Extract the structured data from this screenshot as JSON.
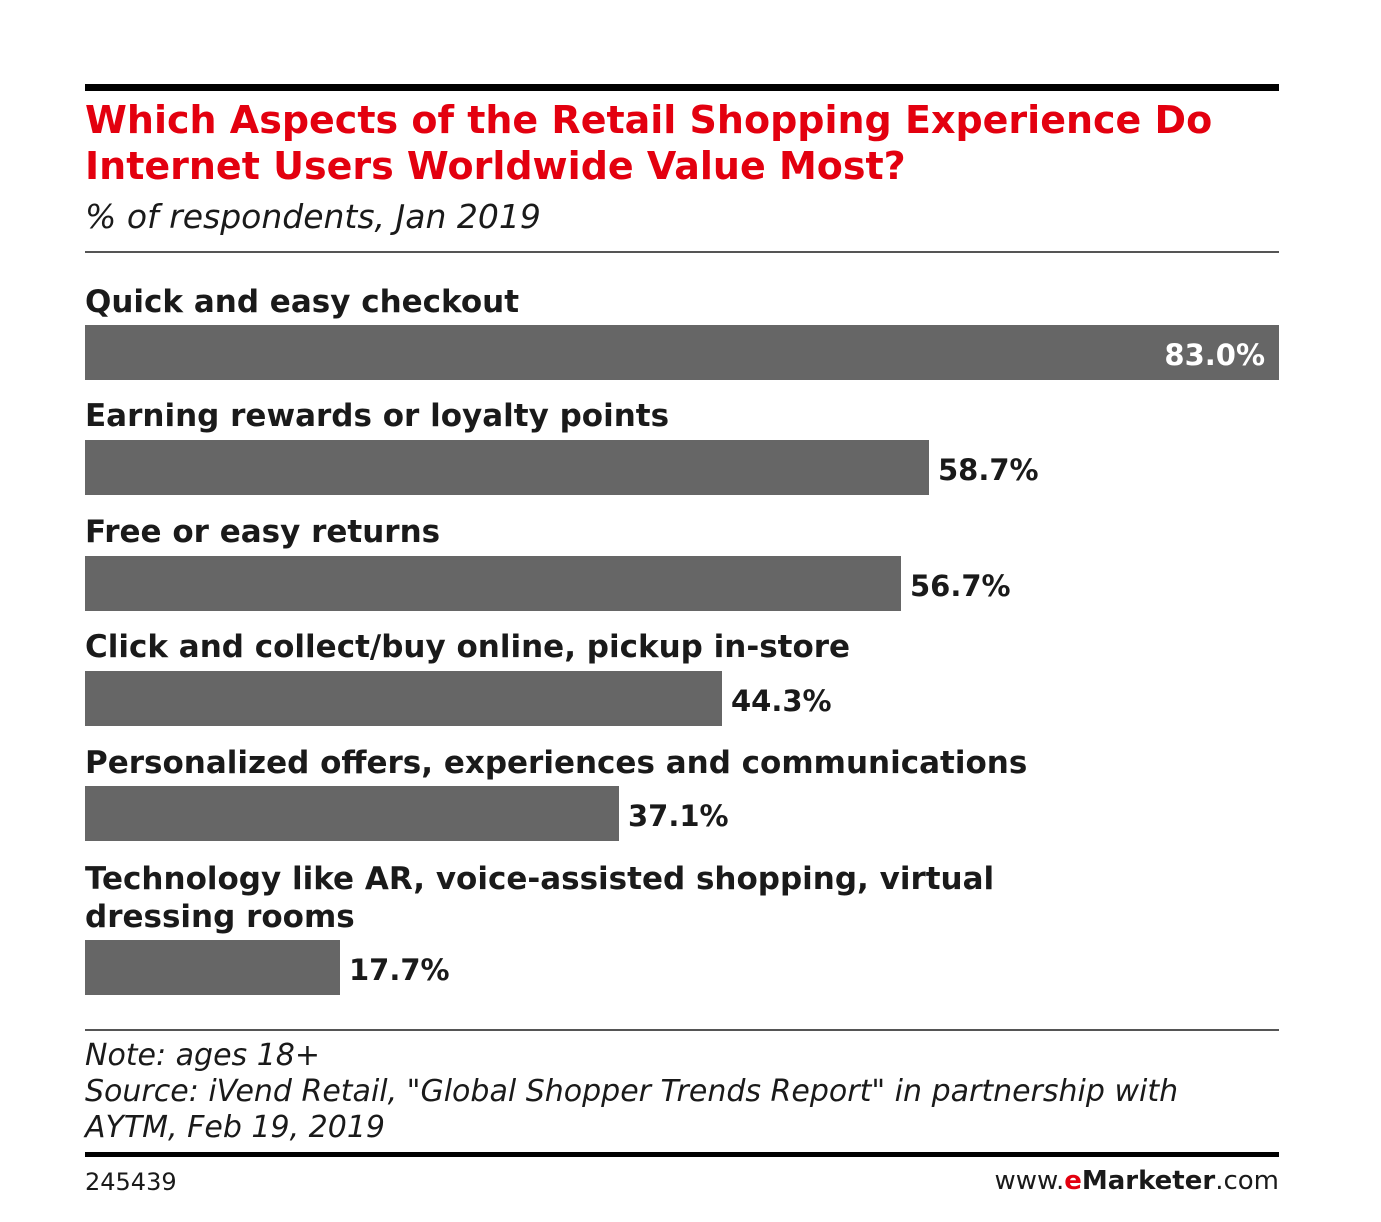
{
  "header": {
    "title": "Which Aspects of the Retail Shopping Experience Do Internet Users Worldwide Value Most?",
    "subtitle": "% of respondents, Jan 2019"
  },
  "footer": {
    "note": "Note: ages 18+",
    "source": "Source: iVend Retail, \"Global Shopper Trends Report\" in partnership with AYTM, Feb 19, 2019",
    "chart_id": "245439",
    "brand_prefix": "www.",
    "brand_e": "e",
    "brand_name": "Marketer",
    "brand_suffix": ".com"
  },
  "colors": {
    "title": "#e3000f",
    "bar": "#666666",
    "value_inside": "#ffffff",
    "value_outside": "#1a1a1a"
  },
  "chart_data": {
    "type": "bar",
    "orientation": "horizontal",
    "categories": [
      "Quick and easy checkout",
      "Earning rewards or loyalty points",
      "Free or easy returns",
      "Click and collect/buy online, pickup in-store",
      "Personalized offers, experiences and communications",
      "Technology like AR, voice-assisted shopping, virtual dressing rooms"
    ],
    "values": [
      83.0,
      58.7,
      56.7,
      44.3,
      37.1,
      17.7
    ],
    "value_labels": [
      "83.0%",
      "58.7%",
      "56.7%",
      "44.3%",
      "37.1%",
      "17.7%"
    ],
    "title": "Which Aspects of the Retail Shopping Experience Do Internet Users Worldwide Value Most?",
    "subtitle": "% of respondents, Jan 2019",
    "xlim": [
      0,
      83.0
    ],
    "grid": false,
    "legend": "none"
  }
}
